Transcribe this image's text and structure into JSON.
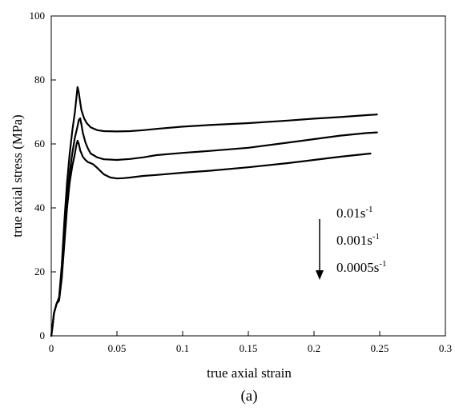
{
  "chart_data": {
    "type": "line",
    "xlabel": "true axial strain",
    "ylabel": "true axial stress (MPa)",
    "panel_label": "(a)",
    "xlim": [
      0,
      0.3
    ],
    "ylim": [
      0,
      100
    ],
    "x_ticks": [
      0,
      0.05,
      0.1,
      0.15,
      0.2,
      0.25,
      0.3
    ],
    "x_tick_labels": [
      "0",
      "0.05",
      "0.1",
      "0.15",
      "0.2",
      "0.25",
      "0.3"
    ],
    "y_ticks": [
      0,
      20,
      40,
      60,
      80,
      100
    ],
    "y_tick_labels": [
      "0",
      "20",
      "40",
      "60",
      "80",
      "100"
    ],
    "grid": false,
    "legend": {
      "placement": "middle-right",
      "arrow": "down",
      "entries": [
        {
          "base": "0.01s",
          "sup": "-1"
        },
        {
          "base": "0.001s",
          "sup": "-1"
        },
        {
          "base": "0.0005s",
          "sup": "-1"
        }
      ]
    },
    "series": [
      {
        "color": "#000000",
        "x": [
          0,
          0.001,
          0.002,
          0.004,
          0.006,
          0.008,
          0.01,
          0.012,
          0.014,
          0.016,
          0.018,
          0.019,
          0.02,
          0.021,
          0.022,
          0.023,
          0.025,
          0.027,
          0.03,
          0.035,
          0.04,
          0.05,
          0.06,
          0.07,
          0.08,
          0.1,
          0.12,
          0.15,
          0.18,
          0.2,
          0.22,
          0.24,
          0.248
        ],
        "y": [
          0,
          3,
          7,
          10,
          12,
          22,
          36,
          48,
          57,
          64,
          70,
          74,
          77.8,
          76,
          73,
          70.5,
          68,
          66.5,
          65.2,
          64.3,
          64,
          63.9,
          64,
          64.3,
          64.7,
          65.4,
          65.9,
          66.5,
          67.3,
          67.9,
          68.4,
          69,
          69.2
        ]
      },
      {
        "color": "#000000",
        "x": [
          0,
          0.001,
          0.002,
          0.004,
          0.006,
          0.008,
          0.01,
          0.012,
          0.014,
          0.016,
          0.018,
          0.02,
          0.021,
          0.022,
          0.023,
          0.024,
          0.026,
          0.028,
          0.03,
          0.035,
          0.04,
          0.05,
          0.06,
          0.07,
          0.08,
          0.1,
          0.12,
          0.15,
          0.18,
          0.2,
          0.22,
          0.24,
          0.248
        ],
        "y": [
          0,
          3,
          7,
          10,
          12,
          20,
          32,
          43,
          51,
          57,
          62,
          65.5,
          67.5,
          68,
          66,
          63.5,
          60.5,
          58.5,
          57,
          55.8,
          55.2,
          55,
          55.3,
          55.8,
          56.5,
          57.2,
          57.8,
          58.8,
          60.4,
          61.5,
          62.6,
          63.4,
          63.6
        ]
      },
      {
        "color": "#000000",
        "x": [
          0,
          0.001,
          0.002,
          0.004,
          0.006,
          0.008,
          0.01,
          0.012,
          0.014,
          0.016,
          0.018,
          0.019,
          0.02,
          0.021,
          0.022,
          0.024,
          0.026,
          0.028,
          0.03,
          0.032,
          0.035,
          0.04,
          0.045,
          0.05,
          0.055,
          0.06,
          0.07,
          0.08,
          0.1,
          0.12,
          0.15,
          0.18,
          0.2,
          0.22,
          0.243
        ],
        "y": [
          0,
          3,
          7,
          10,
          11,
          18,
          29,
          40,
          48,
          53,
          57,
          59.5,
          61,
          60,
          58,
          56,
          55,
          54.3,
          54,
          53.6,
          52.5,
          50.5,
          49.5,
          49.2,
          49.3,
          49.5,
          50,
          50.3,
          51,
          51.6,
          52.7,
          54,
          55,
          56,
          57
        ]
      }
    ]
  }
}
